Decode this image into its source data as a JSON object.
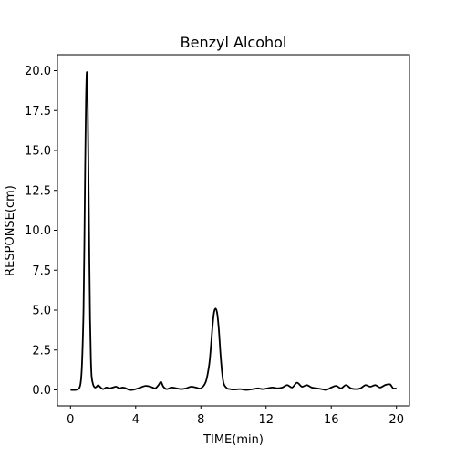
{
  "chart_data": {
    "type": "line",
    "title": "Benzyl Alcohol",
    "xlabel": "TIME(min)",
    "ylabel": "RESPONSE(cm)",
    "xlim": [
      -0.8,
      20.8
    ],
    "ylim": [
      -1.0,
      21.0
    ],
    "xticks": [
      0,
      4,
      8,
      12,
      16,
      20
    ],
    "xtick_labels": [
      "0",
      "4",
      "8",
      "12",
      "16",
      "20"
    ],
    "yticks": [
      0.0,
      2.5,
      5.0,
      7.5,
      10.0,
      12.5,
      15.0,
      17.5,
      20.0
    ],
    "ytick_labels": [
      "0.0",
      "2.5",
      "5.0",
      "7.5",
      "10.0",
      "12.5",
      "15.0",
      "17.5",
      "20.0"
    ],
    "grid": false,
    "line_color": "#000000",
    "series": [
      {
        "x": [
          0.0,
          0.4,
          0.6,
          0.7,
          0.8,
          0.85,
          0.9,
          0.95,
          1.0,
          1.05,
          1.1,
          1.15,
          1.2,
          1.25,
          1.3,
          1.4,
          1.5,
          1.6,
          1.7,
          1.8,
          2.0,
          2.2,
          2.4,
          2.6,
          2.8,
          3.0,
          3.2,
          3.4,
          3.6,
          3.8,
          4.0,
          4.3,
          4.6,
          4.9,
          5.2,
          5.4,
          5.55,
          5.7,
          5.9,
          6.2,
          6.5,
          6.8,
          7.1,
          7.4,
          7.7,
          8.0,
          8.3,
          8.5,
          8.6,
          8.7,
          8.8,
          8.9,
          9.0,
          9.1,
          9.2,
          9.3,
          9.4,
          9.6,
          9.8,
          10.0,
          10.4,
          10.8,
          11.2,
          11.5,
          11.8,
          12.1,
          12.4,
          12.7,
          13.0,
          13.3,
          13.6,
          13.9,
          14.2,
          14.5,
          14.8,
          15.1,
          15.4,
          15.7,
          16.0,
          16.3,
          16.6,
          16.9,
          17.2,
          17.5,
          17.8,
          18.1,
          18.4,
          18.7,
          19.0,
          19.3,
          19.6,
          19.8,
          20.0
        ],
        "y": [
          0.0,
          0.02,
          0.3,
          1.5,
          5.0,
          9.0,
          14.0,
          18.0,
          19.9,
          18.5,
          14.0,
          9.0,
          4.5,
          2.0,
          0.8,
          0.3,
          0.15,
          0.2,
          0.3,
          0.2,
          0.05,
          0.15,
          0.1,
          0.15,
          0.2,
          0.1,
          0.15,
          0.1,
          0.0,
          0.0,
          0.05,
          0.15,
          0.25,
          0.2,
          0.1,
          0.3,
          0.5,
          0.2,
          0.05,
          0.15,
          0.1,
          0.05,
          0.1,
          0.2,
          0.15,
          0.1,
          0.5,
          1.5,
          2.5,
          3.8,
          4.8,
          5.1,
          4.8,
          3.8,
          2.3,
          1.1,
          0.4,
          0.1,
          0.05,
          0.02,
          0.05,
          0.0,
          0.05,
          0.1,
          0.05,
          0.1,
          0.15,
          0.1,
          0.15,
          0.3,
          0.15,
          0.45,
          0.2,
          0.3,
          0.15,
          0.1,
          0.05,
          0.0,
          0.15,
          0.25,
          0.1,
          0.3,
          0.1,
          0.05,
          0.1,
          0.3,
          0.2,
          0.3,
          0.15,
          0.3,
          0.35,
          0.1,
          0.1
        ]
      }
    ]
  }
}
